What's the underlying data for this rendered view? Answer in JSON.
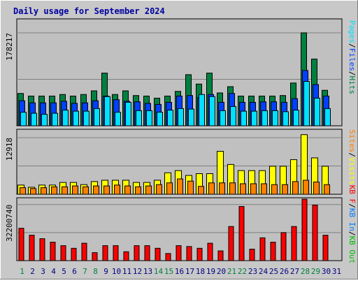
{
  "chart_data": [
    {
      "type": "bar",
      "title": "Daily usage for September 2024",
      "categories": [
        "1",
        "2",
        "3",
        "4",
        "5",
        "6",
        "7",
        "8",
        "9",
        "10",
        "11",
        "12",
        "13",
        "14",
        "15",
        "16",
        "17",
        "18",
        "19",
        "20",
        "21",
        "22",
        "23",
        "24",
        "25",
        "26",
        "27",
        "28",
        "29",
        "30",
        "31"
      ],
      "weekend_days": [
        "1",
        "7",
        "8",
        "14",
        "15",
        "21",
        "22",
        "28",
        "29"
      ],
      "ytick_label": "178217",
      "ytick_value": 178217,
      "ylim": [
        0,
        205000
      ],
      "right_label_parts": [
        "Pages",
        "Files",
        "Hits"
      ],
      "colors": {
        "hits": "#008040",
        "files": "#0040ff",
        "pages": "#00e0ff"
      },
      "series": [
        {
          "name": "Hits",
          "values": [
            62000,
            57000,
            57000,
            57000,
            60000,
            57000,
            60000,
            67000,
            101000,
            60000,
            67000,
            58000,
            57000,
            53000,
            57000,
            66000,
            98000,
            80000,
            101000,
            63000,
            75000,
            57000,
            57000,
            57000,
            57000,
            58000,
            82000,
            178217,
            128000,
            68000,
            0
          ]
        },
        {
          "name": "Files",
          "values": [
            48000,
            44000,
            44000,
            44000,
            47000,
            43000,
            44000,
            48000,
            57000,
            50000,
            47000,
            46000,
            43000,
            41000,
            45000,
            57000,
            58000,
            54000,
            60000,
            45000,
            62000,
            45000,
            45000,
            46000,
            46000,
            45000,
            52000,
            106000,
            79000,
            57000,
            0
          ]
        },
        {
          "name": "Pages",
          "values": [
            26000,
            24000,
            22000,
            24000,
            30000,
            28000,
            28000,
            33000,
            56000,
            26000,
            45000,
            29000,
            29000,
            26000,
            30000,
            33000,
            32000,
            60000,
            56000,
            29000,
            37000,
            28000,
            28000,
            29000,
            29000,
            27000,
            30000,
            85000,
            53000,
            33000,
            0
          ]
        }
      ]
    },
    {
      "type": "bar",
      "categories": [
        "1",
        "2",
        "3",
        "4",
        "5",
        "6",
        "7",
        "8",
        "9",
        "10",
        "11",
        "12",
        "13",
        "14",
        "15",
        "16",
        "17",
        "18",
        "19",
        "20",
        "21",
        "22",
        "23",
        "24",
        "25",
        "26",
        "27",
        "28",
        "29",
        "30",
        "31"
      ],
      "ytick_label": "12918",
      "ytick_value": 12918,
      "ylim": [
        0,
        14830
      ],
      "right_label_parts": [
        "Sites",
        "/",
        "Visits"
      ],
      "colors": {
        "visits": "#ffff00",
        "sites": "#ff8000"
      },
      "series": [
        {
          "name": "Visits",
          "values": [
            2100,
            1600,
            2100,
            2100,
            2700,
            2700,
            2200,
            2900,
            3200,
            3200,
            3200,
            2700,
            2700,
            3200,
            4900,
            5400,
            4300,
            4700,
            4700,
            9800,
            6800,
            5400,
            5400,
            5400,
            6400,
            6400,
            7900,
            13600,
            8300,
            6400,
            0
          ]
        },
        {
          "name": "Sites",
          "values": [
            1500,
            1300,
            1500,
            1700,
            1700,
            1900,
            1700,
            1900,
            1900,
            2100,
            1900,
            1700,
            1900,
            2200,
            2600,
            3500,
            3000,
            1800,
            2600,
            2600,
            2600,
            2400,
            2400,
            2400,
            2200,
            2200,
            2900,
            3200,
            2800,
            2200,
            0
          ]
        }
      ]
    },
    {
      "type": "bar",
      "categories": [
        "1",
        "2",
        "3",
        "4",
        "5",
        "6",
        "7",
        "8",
        "9",
        "10",
        "11",
        "12",
        "13",
        "14",
        "15",
        "16",
        "17",
        "18",
        "19",
        "20",
        "21",
        "22",
        "23",
        "24",
        "25",
        "26",
        "27",
        "28",
        "29",
        "30",
        "31"
      ],
      "ytick_label": "32200740",
      "ytick_value": 32200740,
      "ylim": [
        0,
        36110000
      ],
      "right_label_parts": [
        "KB F",
        "/",
        "KB In",
        "/",
        "KB Out"
      ],
      "colors": {
        "kbf": "#ff0000",
        "kbin": "#0080ff",
        "kbout": "#00c000"
      },
      "series": [
        {
          "name": "KB F",
          "values": [
            18600000,
            14600000,
            12600000,
            10600000,
            8600000,
            7100000,
            10000000,
            4600000,
            8600000,
            8600000,
            5100000,
            8600000,
            8600000,
            7100000,
            4100000,
            8600000,
            8100000,
            7100000,
            10000000,
            5600000,
            19600000,
            31100000,
            6600000,
            13100000,
            10600000,
            16100000,
            19600000,
            35300000,
            31900000,
            14600000,
            0
          ]
        }
      ]
    }
  ]
}
